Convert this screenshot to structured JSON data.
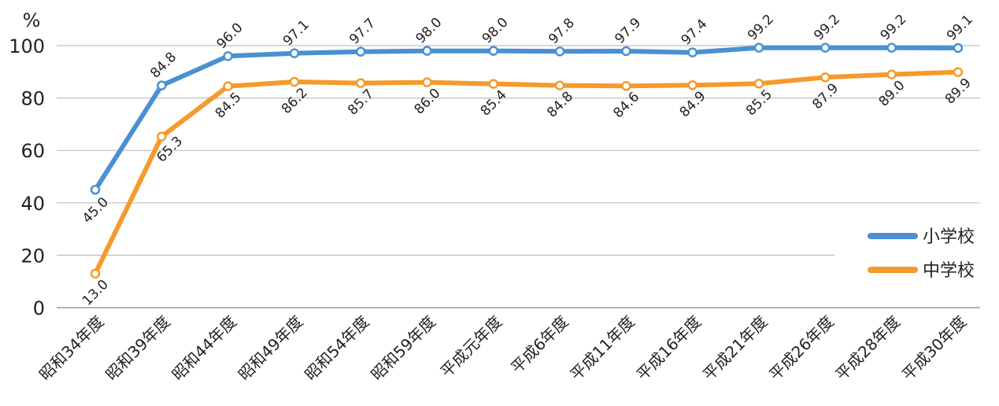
{
  "chart_data": {
    "type": "line",
    "ylabel": "%",
    "ylim": [
      0,
      100
    ],
    "yticks": [
      0,
      20,
      40,
      60,
      80,
      100
    ],
    "grid": "horizontal",
    "legend_position": "right",
    "categories": [
      "昭和34年度",
      "昭和39年度",
      "昭和44年度",
      "昭和49年度",
      "昭和54年度",
      "昭和59年度",
      "平成元年度",
      "平成6年度",
      "平成11年度",
      "平成16年度",
      "平成21年度",
      "平成26年度",
      "平成28年度",
      "平成30年度"
    ],
    "series": [
      {
        "name": "小学校",
        "color": "#4A90D2",
        "values": [
          45.0,
          84.8,
          96.0,
          97.1,
          97.7,
          98.0,
          98.0,
          97.8,
          97.9,
          97.4,
          99.2,
          99.2,
          99.2,
          99.1
        ],
        "labels": [
          "45.0",
          "84.8",
          "96.0",
          "97.1",
          "97.7",
          "98.0",
          "98.0",
          "97.8",
          "97.9",
          "97.4",
          "99.2",
          "99.2",
          "99.2",
          "99.1"
        ]
      },
      {
        "name": "中学校",
        "color": "#F59A2B",
        "values": [
          13.0,
          65.3,
          84.5,
          86.2,
          85.7,
          86.0,
          85.4,
          84.8,
          84.6,
          84.9,
          85.5,
          87.9,
          89.0,
          89.9
        ],
        "labels": [
          "13.0",
          "65.3",
          "84.5",
          "86.2",
          "85.7",
          "86.0",
          "85.4",
          "84.8",
          "84.6",
          "84.9",
          "85.5",
          "87.9",
          "89.0",
          "89.9"
        ]
      }
    ]
  }
}
